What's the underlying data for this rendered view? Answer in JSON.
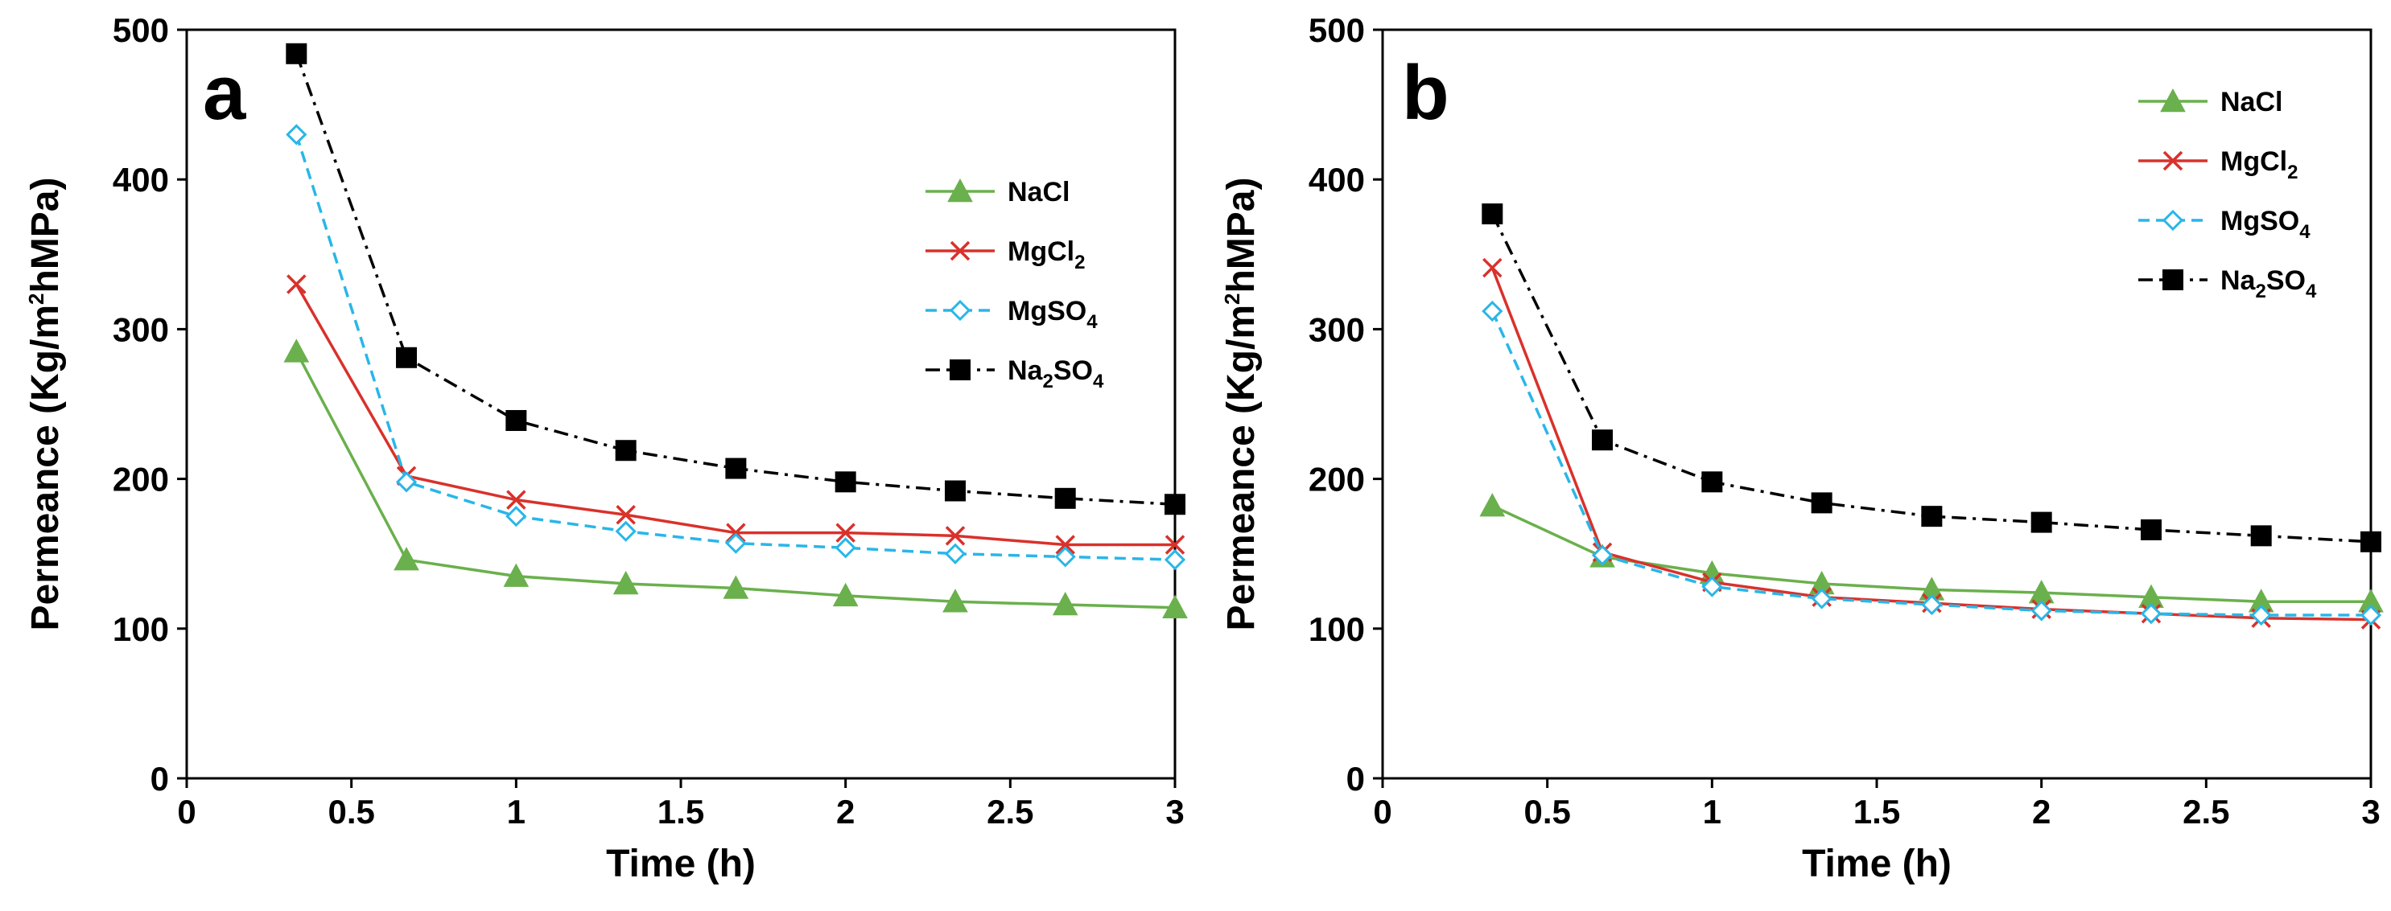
{
  "chart_data": [
    {
      "type": "line",
      "panel_label": "a",
      "xlabel": "Time (h)",
      "ylabel": {
        "pre": "Permeance (Kg/m",
        "sup": "2",
        "post": "hMPa)"
      },
      "xlim": [
        0,
        3
      ],
      "ylim": [
        0,
        500
      ],
      "xticks": [
        "0",
        "0.5",
        "1",
        "1.5",
        "2",
        "2.5",
        "3"
      ],
      "yticks": [
        "0",
        "100",
        "200",
        "300",
        "400",
        "500"
      ],
      "legend_position": "right",
      "x": [
        0.333,
        0.667,
        1.0,
        1.333,
        1.667,
        2.0,
        2.333,
        2.667,
        3.0
      ],
      "series": [
        {
          "name": "NaCl",
          "label_main": "NaCl",
          "label_sub": "",
          "label_tail": "",
          "color": "#6ab04c",
          "marker": "triangle",
          "dash": "solid",
          "values": [
            285,
            146,
            135,
            130,
            127,
            122,
            118,
            116,
            114
          ]
        },
        {
          "name": "MgCl2",
          "label_main": "MgCl",
          "label_sub": "2",
          "label_tail": "",
          "color": "#d9312b",
          "marker": "x",
          "dash": "solid",
          "values": [
            330,
            202,
            186,
            176,
            164,
            164,
            162,
            156,
            156
          ]
        },
        {
          "name": "MgSO4",
          "label_main": "MgSO",
          "label_sub": "4",
          "label_tail": "",
          "color": "#29b6e8",
          "marker": "diamond",
          "dash": "dashed",
          "values": [
            430,
            198,
            175,
            165,
            157,
            154,
            150,
            148,
            146
          ]
        },
        {
          "name": "Na2SO4",
          "label_main": "Na",
          "label_sub": "2",
          "label_tail": "SO",
          "label_sub2": "4",
          "color": "#000000",
          "marker": "square",
          "dash": "dashdot",
          "values": [
            484,
            281,
            239,
            219,
            207,
            198,
            192,
            187,
            183
          ]
        }
      ]
    },
    {
      "type": "line",
      "panel_label": "b",
      "xlabel": "Time (h)",
      "ylabel": {
        "pre": "Permeance (Kg/m",
        "sup": "2",
        "post": "hMPa)"
      },
      "xlim": [
        0,
        3
      ],
      "ylim": [
        0,
        500
      ],
      "xticks": [
        "0",
        "0.5",
        "1",
        "1.5",
        "2",
        "2.5",
        "3"
      ],
      "yticks": [
        "0",
        "100",
        "200",
        "300",
        "400",
        "500"
      ],
      "legend_position": "top-right",
      "x": [
        0.333,
        0.667,
        1.0,
        1.333,
        1.667,
        2.0,
        2.333,
        2.667,
        3.0
      ],
      "series": [
        {
          "name": "NaCl",
          "label_main": "NaCl",
          "label_sub": "",
          "label_tail": "",
          "color": "#6ab04c",
          "marker": "triangle",
          "dash": "solid",
          "values": [
            182,
            148,
            137,
            130,
            126,
            124,
            121,
            118,
            118
          ]
        },
        {
          "name": "MgCl2",
          "label_main": "MgCl",
          "label_sub": "2",
          "label_tail": "",
          "color": "#d9312b",
          "marker": "x",
          "dash": "solid",
          "values": [
            341,
            151,
            131,
            121,
            117,
            113,
            110,
            107,
            106
          ]
        },
        {
          "name": "MgSO4",
          "label_main": "MgSO",
          "label_sub": "4",
          "label_tail": "",
          "color": "#29b6e8",
          "marker": "diamond",
          "dash": "dashed",
          "values": [
            312,
            149,
            128,
            120,
            116,
            112,
            110,
            109,
            109
          ]
        },
        {
          "name": "Na2SO4",
          "label_main": "Na",
          "label_sub": "2",
          "label_tail": "SO",
          "label_sub2": "4",
          "color": "#000000",
          "marker": "square",
          "dash": "dashdot",
          "values": [
            377,
            226,
            198,
            184,
            175,
            171,
            166,
            162,
            158
          ]
        }
      ]
    }
  ]
}
